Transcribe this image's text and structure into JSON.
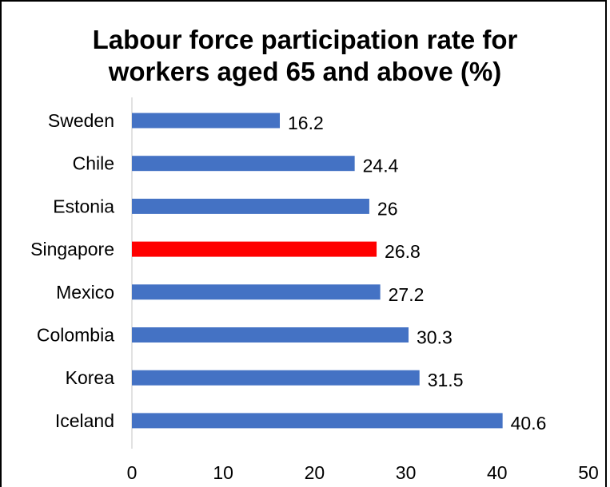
{
  "chart_data": {
    "type": "bar",
    "orientation": "horizontal",
    "title_line1": "Labour force participation rate for",
    "title_line2": "workers aged 65 and above (%)",
    "categories": [
      "Sweden",
      "Chile",
      "Estonia",
      "Singapore",
      "Mexico",
      "Colombia",
      "Korea",
      "Iceland"
    ],
    "values": [
      16.2,
      24.4,
      26,
      26.8,
      27.2,
      30.3,
      31.5,
      40.6
    ],
    "value_labels": [
      "16.2",
      "24.4",
      "26",
      "26.8",
      "27.2",
      "30.3",
      "31.5",
      "40.6"
    ],
    "highlight_category": "Singapore",
    "xlim": [
      0,
      50
    ],
    "x_ticks": [
      "0",
      "10",
      "20",
      "30",
      "40",
      "50"
    ],
    "grid": false,
    "legend": "none",
    "colors": {
      "bar": "#4472C4",
      "highlight": "#FF0000",
      "axis": "#D9D9D9",
      "text": "#000000"
    }
  }
}
